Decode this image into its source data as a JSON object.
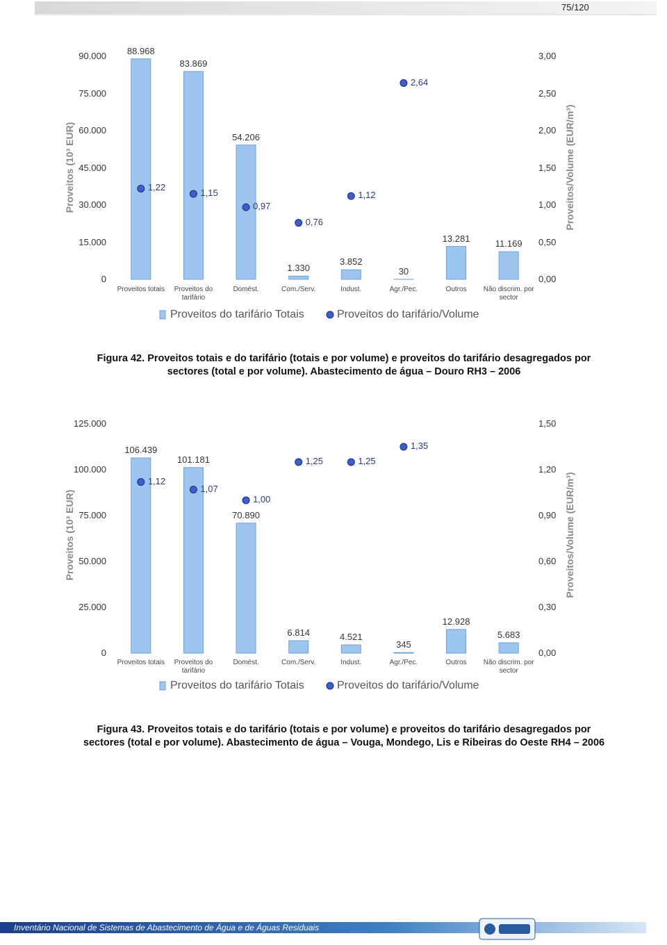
{
  "page_number": "75/120",
  "chart_data": [
    {
      "type": "bar",
      "y_label": "Proveitos (10³ EUR)",
      "y2_label": "Proveitos/Volume (EUR/m³)",
      "categories": [
        "Proveitos totais",
        "Proveitos do tarifário",
        "Domést.",
        "Com./Serv.",
        "Indust.",
        "Agr./Pec.",
        "Outros",
        "Não discrim. por sector"
      ],
      "series": [
        {
          "name": "Proveitos do tarifário Totais",
          "type": "bar",
          "color": "#9cc5ef",
          "values": [
            88968,
            83869,
            54206,
            1330,
            3852,
            30,
            13281,
            11169
          ],
          "value_labels": [
            "88.968",
            "83.869",
            "54.206",
            "1.330",
            "3.852",
            "30",
            "13.281",
            "11.169"
          ]
        },
        {
          "name": "Proveitos do tarifário/Volume",
          "type": "scatter",
          "axis": "y2",
          "color": "#3a5fd0",
          "values": [
            1.22,
            1.15,
            0.97,
            0.76,
            1.12,
            2.64,
            null,
            null
          ],
          "value_labels": [
            "1,22",
            "1,15",
            "0,97",
            "0,76",
            "1,12",
            "2,64",
            null,
            null
          ]
        }
      ],
      "ylim": [
        0,
        90000
      ],
      "yticks": [
        0,
        {
          "value": 15000,
          "label": "15.000"
        },
        {
          "value": 30000,
          "label": "30.000"
        },
        {
          "value": 45000,
          "label": "45.000"
        },
        {
          "value": 60000,
          "label": "60.000"
        },
        {
          "value": 75000,
          "label": "75.000"
        },
        {
          "value": 90000,
          "label": "90.000"
        }
      ],
      "y2lim": [
        0,
        3
      ],
      "y2ticks": [
        {
          "value": 0,
          "label": "0,00"
        },
        {
          "value": 0.5,
          "label": "0,50"
        },
        {
          "value": 1,
          "label": "1,00"
        },
        {
          "value": 1.5,
          "label": "1,50"
        },
        {
          "value": 2,
          "label": "2,00"
        },
        {
          "value": 2.5,
          "label": "2,50"
        },
        {
          "value": 3,
          "label": "3,00"
        }
      ]
    },
    {
      "type": "bar",
      "y_label": "Proveitos (10³ EUR)",
      "y2_label": "Proveitos/Volume (EUR/m³)",
      "categories": [
        "Proveitos totais",
        "Proveitos do tarifário",
        "Domést.",
        "Com./Serv.",
        "Indust.",
        "Agr./Pec.",
        "Outros",
        "Não discrim. por sector"
      ],
      "series": [
        {
          "name": "Proveitos do tarifário Totais",
          "type": "bar",
          "color": "#9cc5ef",
          "values": [
            106439,
            101181,
            70890,
            6814,
            4521,
            345,
            12928,
            5683
          ],
          "value_labels": [
            "106.439",
            "101.181",
            "70.890",
            "6.814",
            "4.521",
            "345",
            "12.928",
            "5.683"
          ]
        },
        {
          "name": "Proveitos do tarifário/Volume",
          "type": "scatter",
          "axis": "y2",
          "color": "#3a5fd0",
          "values": [
            1.12,
            1.07,
            1.0,
            1.25,
            1.25,
            1.35,
            null,
            null
          ],
          "value_labels": [
            "1,12",
            "1,07",
            "1,00",
            "1,25",
            "1,25",
            "1,35",
            null,
            null
          ]
        }
      ],
      "ylim": [
        0,
        125000
      ],
      "yticks": [
        0,
        {
          "value": 25000,
          "label": "25.000"
        },
        {
          "value": 50000,
          "label": "50.000"
        },
        {
          "value": 75000,
          "label": "75.000"
        },
        {
          "value": 100000,
          "label": "100.000"
        },
        {
          "value": 125000,
          "label": "125.000"
        }
      ],
      "y2lim": [
        0,
        1.5
      ],
      "y2ticks": [
        {
          "value": 0,
          "label": "0,00"
        },
        {
          "value": 0.3,
          "label": "0,30"
        },
        {
          "value": 0.6,
          "label": "0,60"
        },
        {
          "value": 0.9,
          "label": "0,90"
        },
        {
          "value": 1.2,
          "label": "1,20"
        },
        {
          "value": 1.5,
          "label": "1,50"
        }
      ]
    }
  ],
  "captions": [
    {
      "label": "Figura 42.",
      "text": "Proveitos totais e do tarifário (totais e por volume) e proveitos do tarifário desagregados por sectores (total e por volume). Abastecimento de água – Douro RH3 – 2006"
    },
    {
      "label": "Figura 43.",
      "text": "Proveitos totais e do tarifário (totais e por volume) e proveitos do tarifário desagregados por sectores (total e por volume). Abastecimento de água – Vouga, Mondego, Lis e Ribeiras do Oeste RH4 – 2006"
    }
  ],
  "footer": {
    "text": "Inventário Nacional de Sistemas de Abastecimento de Água e de Águas Residuais"
  }
}
